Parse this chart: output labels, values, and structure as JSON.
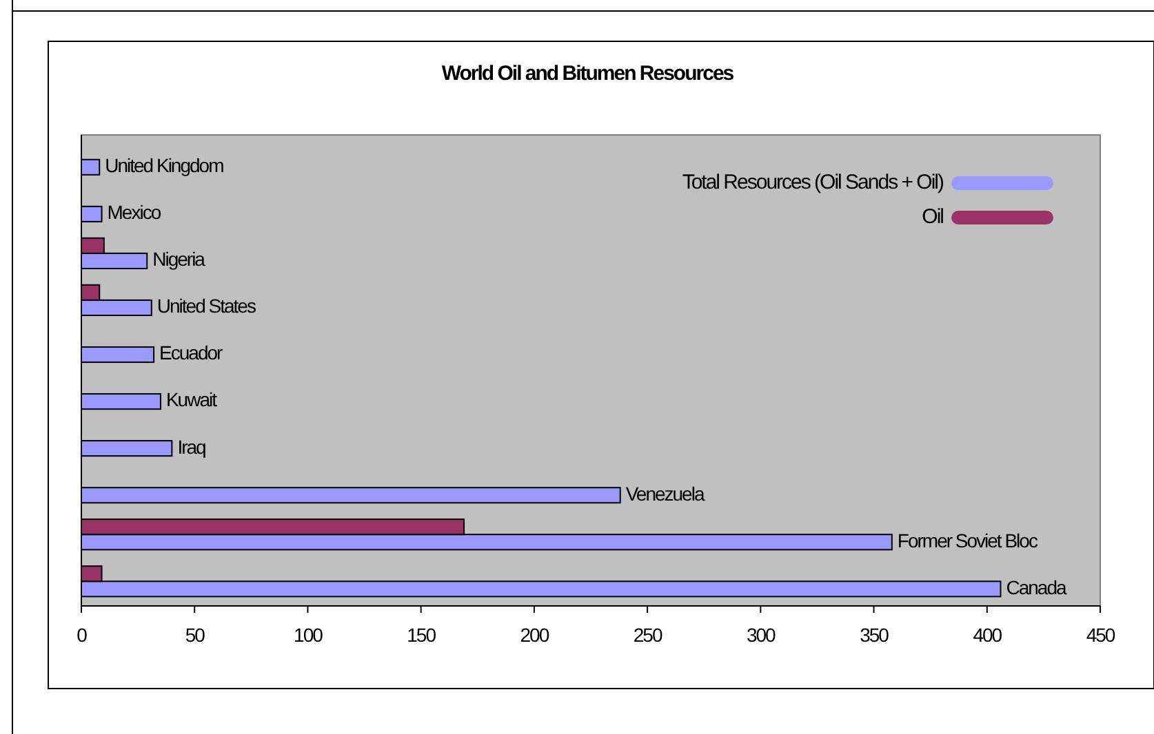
{
  "chart_data": {
    "type": "bar",
    "orientation": "horizontal",
    "title": "World Oil and Bitumen Resources",
    "categories": [
      "United Kingdom",
      "Mexico",
      "Nigeria",
      "United States",
      "Ecuador",
      "Kuwait",
      "Iraq",
      "Venezuela",
      "Former Soviet Bloc",
      "Canada"
    ],
    "series": [
      {
        "name": "Total  Resources (Oil Sands + Oil)",
        "color": "#9999ff",
        "values": [
          8,
          9,
          29,
          31,
          32,
          35,
          40,
          238,
          358,
          406
        ]
      },
      {
        "name": "Oil",
        "color": "#993366",
        "values": [
          null,
          null,
          10,
          8,
          null,
          null,
          null,
          null,
          169,
          9
        ]
      }
    ],
    "xlim": [
      0,
      450
    ],
    "xticks": [
      0,
      50,
      100,
      150,
      200,
      250,
      300,
      350,
      400,
      450
    ],
    "legend": "top right"
  }
}
